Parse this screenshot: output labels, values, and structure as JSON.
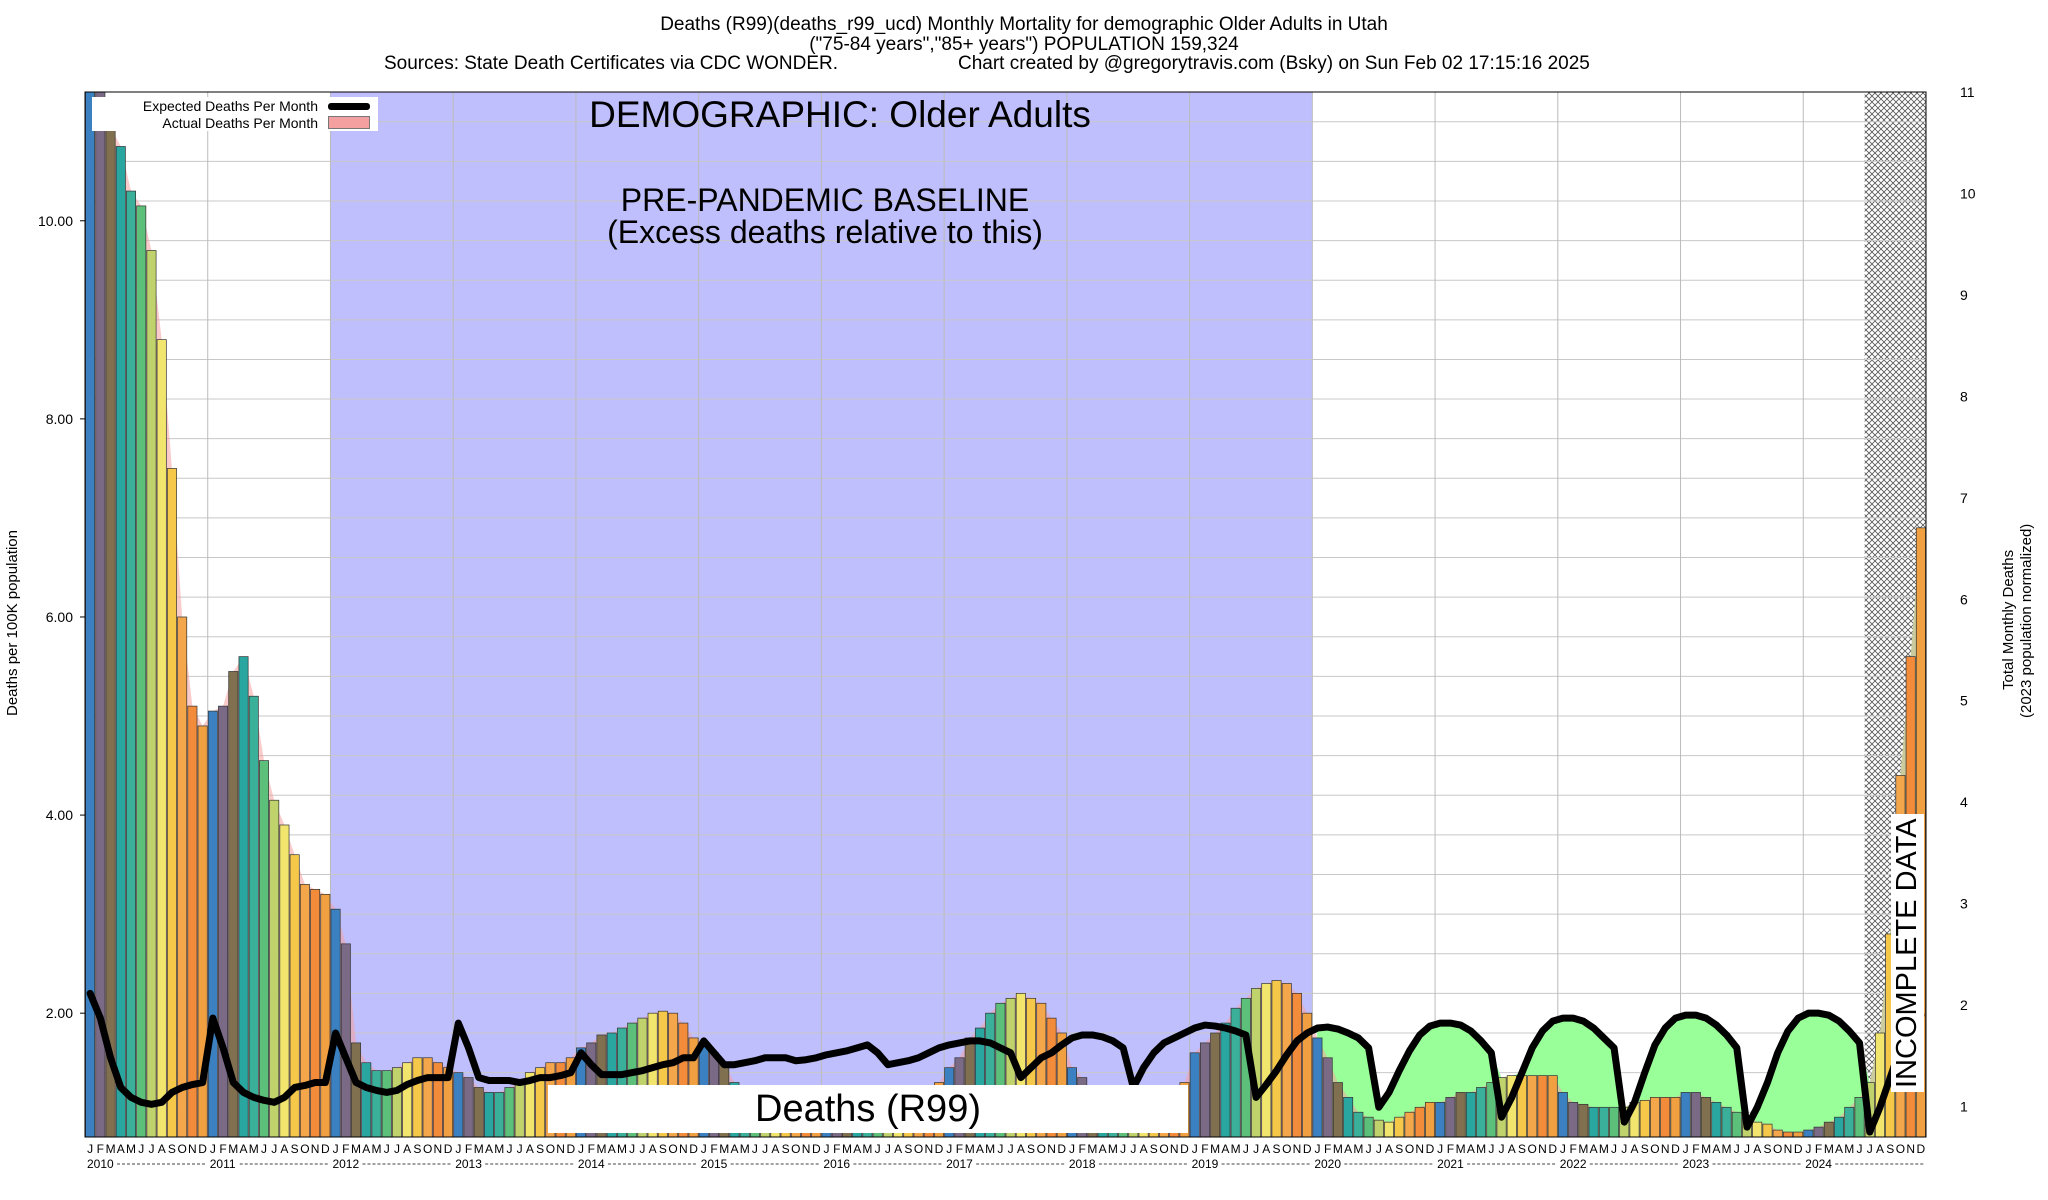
{
  "title": {
    "line1": "Deaths (R99)(deaths_r99_ucd) Monthly Mortality for demographic Older Adults in Utah",
    "line2": "(\"75-84 years\",\"85+ years\") POPULATION 159,324",
    "sources": "Sources: State Death Certificates via CDC WONDER.",
    "credit": "Chart created by @gregorytravis.com (Bsky) on Sun Feb 02 17:15:16 2025"
  },
  "legend": {
    "expected": "Expected Deaths Per Month",
    "actual": "Actual Deaths Per Month"
  },
  "annotations": {
    "demographic": "DEMOGRAPHIC: Older Adults",
    "baseline_line1": "PRE-PANDEMIC BASELINE",
    "baseline_line2": "(Excess deaths relative to this)",
    "plot_label": "Deaths (R99)",
    "incomplete": "INCOMPLETE DATA"
  },
  "colors": {
    "baseline_band": "#bfbffd",
    "excess_fill": "#99ff99",
    "incomplete_hatch": "#555555",
    "expected_line": "#000000",
    "actual_area": "#f4a0a0"
  },
  "chart_data": {
    "type": "bar",
    "title": "Deaths (R99)(deaths_r99_ucd) Monthly Mortality for demographic Older Adults in Utah",
    "ylabel": "Deaths per 100K population",
    "ylabel_right_line1": "Total Monthly Deaths",
    "ylabel_right_line2": "(2023 population normalized)",
    "ylim": [
      0.75,
      11.3
    ],
    "y_ticks": [
      2.0,
      4.0,
      6.0,
      8.0,
      10.0
    ],
    "y_tick_labels": [
      "2.00",
      "4.00",
      "6.00",
      "8.00",
      "10.00"
    ],
    "y_right_ticks": [
      1,
      2,
      3,
      4,
      5,
      6,
      7,
      8,
      9,
      10,
      11
    ],
    "grid": true,
    "legend_position": "top-left",
    "start": "2010-01",
    "month_letters": [
      "J",
      "F",
      "M",
      "A",
      "M",
      "J",
      "J",
      "A",
      "S",
      "O",
      "N",
      "D"
    ],
    "years": [
      "2010",
      "2011",
      "2012",
      "2013",
      "2014",
      "2015",
      "2016",
      "2017",
      "2018",
      "2019",
      "2020",
      "2021",
      "2022",
      "2023",
      "2024"
    ],
    "baseline_period": [
      "2012-01",
      "2019-12"
    ],
    "incomplete_from": "2024-07",
    "series": [
      {
        "name": "Actual Deaths Per Month",
        "values": [
          11.3,
          11.3,
          10.95,
          10.75,
          10.3,
          10.15,
          9.7,
          8.8,
          7.5,
          6.0,
          5.1,
          4.9,
          5.05,
          5.1,
          5.45,
          5.6,
          5.2,
          4.55,
          4.15,
          3.9,
          3.6,
          3.3,
          3.25,
          3.2,
          3.05,
          2.7,
          1.7,
          1.5,
          1.42,
          1.42,
          1.45,
          1.5,
          1.55,
          1.55,
          1.5,
          1.45,
          1.4,
          1.35,
          1.25,
          1.2,
          1.2,
          1.25,
          1.3,
          1.4,
          1.45,
          1.5,
          1.5,
          1.55,
          1.65,
          1.7,
          1.78,
          1.8,
          1.85,
          1.9,
          1.95,
          2.0,
          2.02,
          2.0,
          1.9,
          1.75,
          1.7,
          1.6,
          1.5,
          1.3,
          1.2,
          1.1,
          1.05,
          1.05,
          1.0,
          1.0,
          0.95,
          0.95,
          0.95,
          0.95,
          1.0,
          1.0,
          1.05,
          1.1,
          1.15,
          1.15,
          1.2,
          1.2,
          1.25,
          1.3,
          1.45,
          1.55,
          1.75,
          1.85,
          2.0,
          2.1,
          2.15,
          2.2,
          2.15,
          2.1,
          1.95,
          1.8,
          1.45,
          1.35,
          1.2,
          1.15,
          1.1,
          1.05,
          1.05,
          1.0,
          1.05,
          1.1,
          1.2,
          1.3,
          1.6,
          1.7,
          1.8,
          1.9,
          2.05,
          2.15,
          2.25,
          2.3,
          2.33,
          2.3,
          2.2,
          2.0,
          1.75,
          1.55,
          1.3,
          1.15,
          1.0,
          0.95,
          0.92,
          0.9,
          0.95,
          1.0,
          1.05,
          1.1,
          1.1,
          1.15,
          1.2,
          1.2,
          1.25,
          1.3,
          1.35,
          1.37,
          1.37,
          1.37,
          1.37,
          1.37,
          1.2,
          1.1,
          1.08,
          1.05,
          1.05,
          1.05,
          1.05,
          1.1,
          1.12,
          1.15,
          1.15,
          1.15,
          1.2,
          1.2,
          1.15,
          1.1,
          1.05,
          1.0,
          0.95,
          0.9,
          0.88,
          0.82,
          0.8,
          0.8,
          0.82,
          0.85,
          0.9,
          0.95,
          1.05,
          1.15,
          1.3,
          1.8,
          2.8,
          4.4,
          5.6,
          6.9
        ]
      },
      {
        "name": "Expected Deaths Per Month",
        "values": [
          2.2,
          1.95,
          1.55,
          1.25,
          1.15,
          1.1,
          1.08,
          1.1,
          1.2,
          1.25,
          1.28,
          1.3,
          1.95,
          1.65,
          1.3,
          1.2,
          1.15,
          1.12,
          1.1,
          1.15,
          1.25,
          1.27,
          1.3,
          1.3,
          1.8,
          1.55,
          1.3,
          1.25,
          1.22,
          1.2,
          1.22,
          1.28,
          1.32,
          1.35,
          1.35,
          1.35,
          1.9,
          1.65,
          1.35,
          1.32,
          1.32,
          1.32,
          1.3,
          1.32,
          1.35,
          1.35,
          1.37,
          1.4,
          1.6,
          1.48,
          1.38,
          1.38,
          1.38,
          1.4,
          1.42,
          1.45,
          1.48,
          1.5,
          1.55,
          1.55,
          1.72,
          1.6,
          1.48,
          1.48,
          1.5,
          1.52,
          1.55,
          1.55,
          1.55,
          1.52,
          1.53,
          1.55,
          1.58,
          1.6,
          1.62,
          1.65,
          1.68,
          1.6,
          1.48,
          1.5,
          1.52,
          1.55,
          1.6,
          1.65,
          1.68,
          1.7,
          1.72,
          1.72,
          1.7,
          1.65,
          1.6,
          1.35,
          1.45,
          1.55,
          1.6,
          1.68,
          1.75,
          1.78,
          1.78,
          1.76,
          1.72,
          1.65,
          1.25,
          1.45,
          1.6,
          1.7,
          1.75,
          1.8,
          1.85,
          1.88,
          1.87,
          1.85,
          1.82,
          1.78,
          1.15,
          1.28,
          1.42,
          1.58,
          1.72,
          1.8,
          1.85,
          1.86,
          1.84,
          1.8,
          1.75,
          1.65,
          1.05,
          1.2,
          1.42,
          1.62,
          1.78,
          1.87,
          1.9,
          1.9,
          1.88,
          1.82,
          1.72,
          1.6,
          0.95,
          1.15,
          1.4,
          1.65,
          1.82,
          1.92,
          1.95,
          1.95,
          1.92,
          1.85,
          1.75,
          1.65,
          0.9,
          1.1,
          1.4,
          1.68,
          1.85,
          1.95,
          1.98,
          1.98,
          1.95,
          1.88,
          1.78,
          1.65,
          0.85,
          1.05,
          1.3,
          1.6,
          1.82,
          1.95,
          2.0,
          2.0,
          1.98,
          1.92,
          1.82,
          1.7,
          0.8,
          1.05,
          1.35,
          1.65,
          1.85,
          1.98
        ]
      }
    ]
  }
}
